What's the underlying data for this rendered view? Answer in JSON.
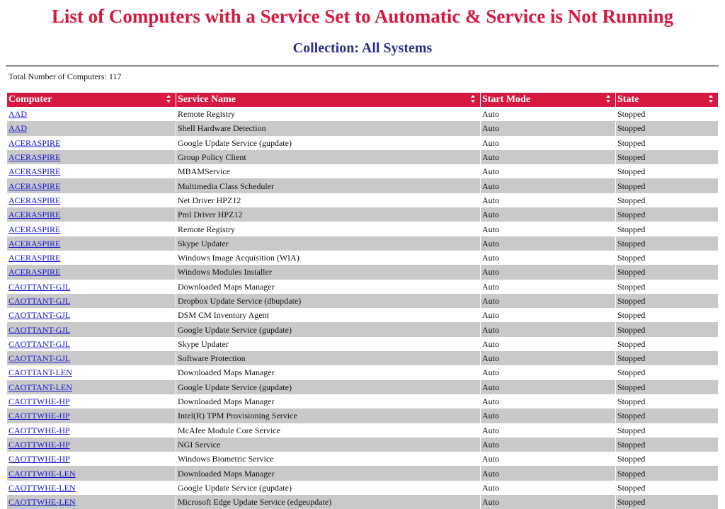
{
  "report": {
    "title": "List of Computers with a Service Set to Automatic & Service is Not Running",
    "subtitle": "Collection: All Systems",
    "total_label": "Total Number of Computers:",
    "total_count": "117"
  },
  "table": {
    "columns": [
      "Computer",
      "Service Name",
      "Start Mode",
      "State"
    ],
    "rows": [
      [
        "AAD",
        "Remote Registry",
        "Auto",
        "Stopped"
      ],
      [
        "AAD",
        "Shell Hardware Detection",
        "Auto",
        "Stopped"
      ],
      [
        "ACERASPIRE",
        "Google Update Service (gupdate)",
        "Auto",
        "Stopped"
      ],
      [
        "ACERASPIRE",
        "Group Policy Client",
        "Auto",
        "Stopped"
      ],
      [
        "ACERASPIRE",
        "MBAMService",
        "Auto",
        "Stopped"
      ],
      [
        "ACERASPIRE",
        "Multimedia Class Scheduler",
        "Auto",
        "Stopped"
      ],
      [
        "ACERASPIRE",
        "Net Driver HPZ12",
        "Auto",
        "Stopped"
      ],
      [
        "ACERASPIRE",
        "Pml Driver HPZ12",
        "Auto",
        "Stopped"
      ],
      [
        "ACERASPIRE",
        "Remote Registry",
        "Auto",
        "Stopped"
      ],
      [
        "ACERASPIRE",
        "Skype Updater",
        "Auto",
        "Stopped"
      ],
      [
        "ACERASPIRE",
        "Windows Image Acquisition (WIA)",
        "Auto",
        "Stopped"
      ],
      [
        "ACERASPIRE",
        "Windows Modules Installer",
        "Auto",
        "Stopped"
      ],
      [
        "CAOTTANT-GJL",
        "Downloaded Maps Manager",
        "Auto",
        "Stopped"
      ],
      [
        "CAOTTANT-GJL",
        "Dropbox Update Service (dbupdate)",
        "Auto",
        "Stopped"
      ],
      [
        "CAOTTANT-GJL",
        "DSM CM Inventory Agent",
        "Auto",
        "Stopped"
      ],
      [
        "CAOTTANT-GJL",
        "Google Update Service (gupdate)",
        "Auto",
        "Stopped"
      ],
      [
        "CAOTTANT-GJL",
        "Skype Updater",
        "Auto",
        "Stopped"
      ],
      [
        "CAOTTANT-GJL",
        "Software Protection",
        "Auto",
        "Stopped"
      ],
      [
        "CAOTTANT-LEN",
        "Downloaded Maps Manager",
        "Auto",
        "Stopped"
      ],
      [
        "CAOTTANT-LEN",
        "Google Update Service (gupdate)",
        "Auto",
        "Stopped"
      ],
      [
        "CAOTTWHE-HP",
        "Downloaded Maps Manager",
        "Auto",
        "Stopped"
      ],
      [
        "CAOTTWHE-HP",
        "Intel(R) TPM Provisioning Service",
        "Auto",
        "Stopped"
      ],
      [
        "CAOTTWHE-HP",
        "McAfee Module Core Service",
        "Auto",
        "Stopped"
      ],
      [
        "CAOTTWHE-HP",
        "NGI Service",
        "Auto",
        "Stopped"
      ],
      [
        "CAOTTWHE-HP",
        "Windows Biometric Service",
        "Auto",
        "Stopped"
      ],
      [
        "CAOTTWHE-LEN",
        "Downloaded Maps Manager",
        "Auto",
        "Stopped"
      ],
      [
        "CAOTTWHE-LEN",
        "Google Update Service (gupdate)",
        "Auto",
        "Stopped"
      ],
      [
        "CAOTTWHE-LEN",
        "Microsoft Edge Update Service (edgeupdate)",
        "Auto",
        "Stopped"
      ]
    ]
  },
  "colors": {
    "accent": "#d7193f",
    "subtitle": "#2e2f8f",
    "link": "#1515d0",
    "row_alt": "#c9c9c9"
  },
  "icons": {
    "sort": "sort-icon"
  }
}
